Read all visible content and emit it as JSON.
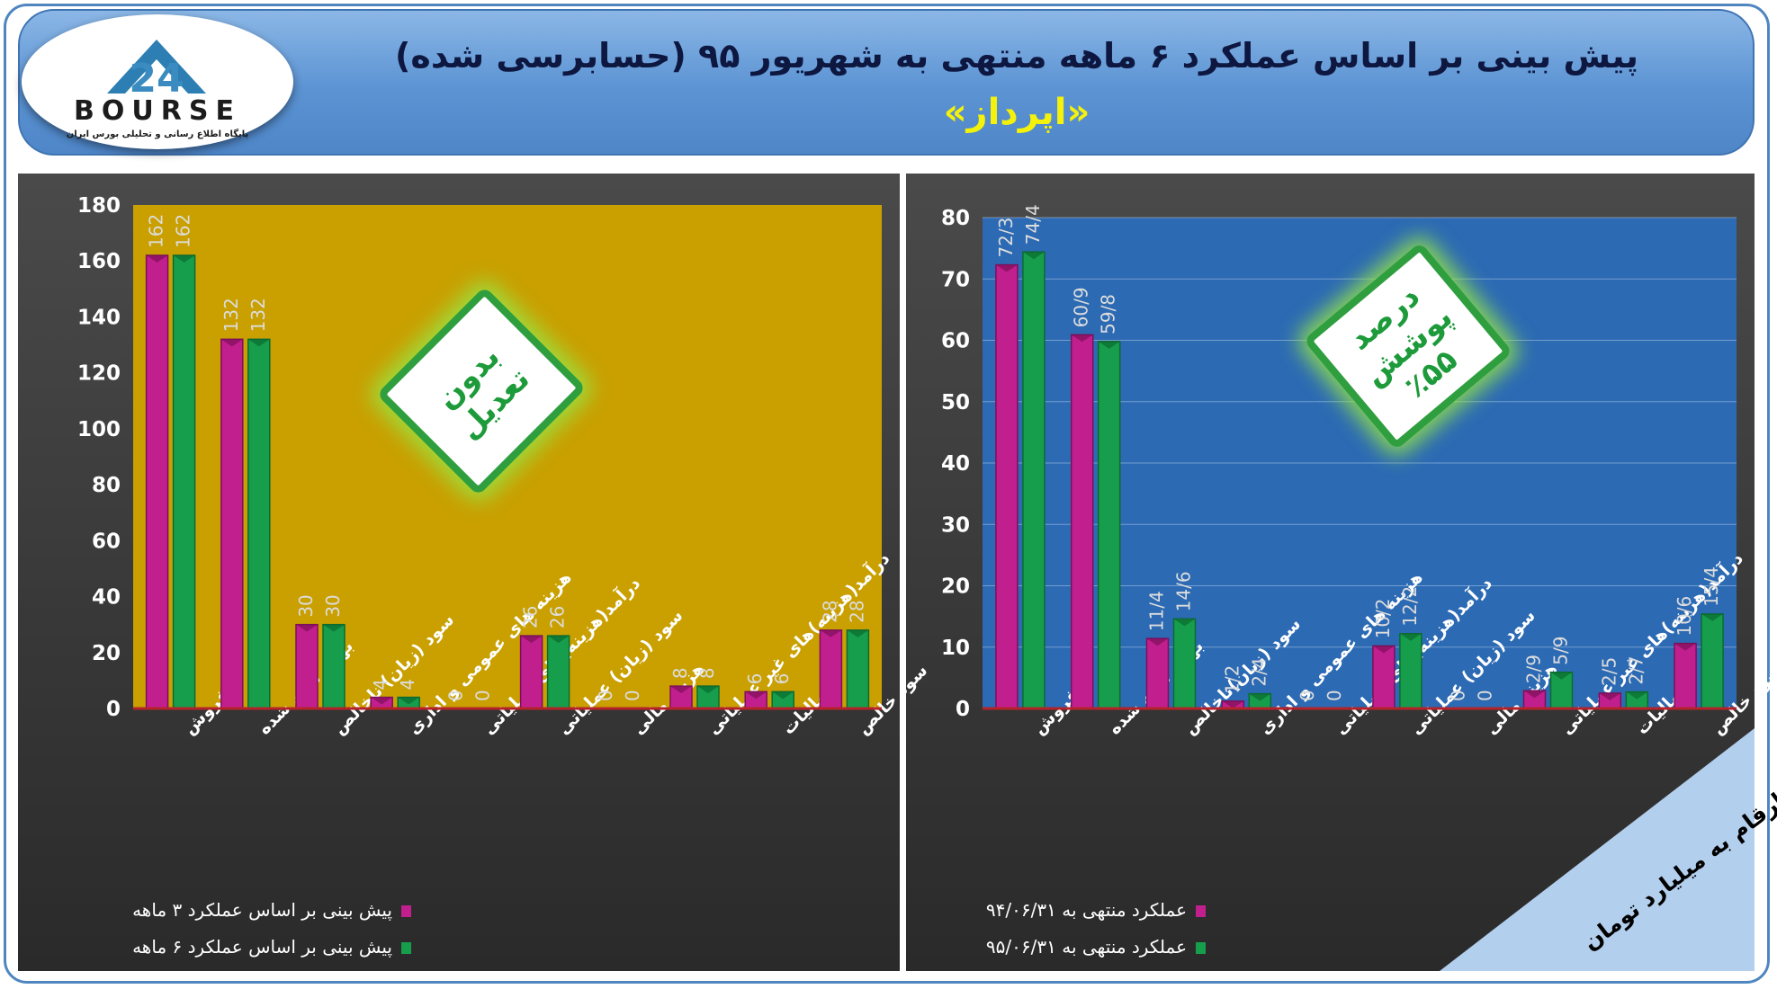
{
  "header": {
    "title": "پیش بینی بر اساس عملکرد ۶ ماهه منتهی به شهریور ۹۵ (حسابرسی شده)",
    "subtitle": "«اپرداز»"
  },
  "logo": {
    "text": "BOURSE",
    "number": "24",
    "tagline": "پایگاه اطلاع رسانی و تحلیلی بورس ایران"
  },
  "colors": {
    "magenta": "#c21f8e",
    "green": "#169e4c",
    "left_plot_bg": "#c9a000",
    "right_plot_bg": "#2c6ab4",
    "header_blue": "#5b93d3",
    "subtitle_yellow": "#f4f10a"
  },
  "badges": {
    "left": "بدون تعدیل",
    "right_line1": "درصد پوشش",
    "right_line2": "٪۵۵"
  },
  "corner_note": "ارقام به میلیارد تومان",
  "chart_data": [
    {
      "type": "bar",
      "categories": [
        "فروش",
        "بهای تمام شده",
        "سود (زیان) ناخالص",
        "هزینه های عمومی و اداری",
        "درآمد(هزینه)های عملیاتی",
        "سود (زیان) عملیاتی",
        "هزینه مالی",
        "درآمد(هزینه)های غیر عملیاتی",
        "مالیات",
        "سود خالص"
      ],
      "series": [
        {
          "name": "پیش بینی بر اساس عملکرد ۳ ماهه",
          "values": [
            162,
            132,
            30,
            4,
            0,
            26,
            0,
            8,
            6,
            28
          ],
          "labels": [
            "162",
            "132",
            "30",
            "4",
            "0",
            "26",
            "0",
            "8",
            "6",
            "28"
          ]
        },
        {
          "name": "پیش بینی بر اساس عملکرد ۶ ماهه",
          "values": [
            162,
            132,
            30,
            4,
            0,
            26,
            0,
            8,
            6,
            28
          ],
          "labels": [
            "162",
            "132",
            "30",
            "4",
            "0",
            "26",
            "0",
            "8",
            "6",
            "28"
          ]
        }
      ],
      "ylim": [
        0,
        180
      ],
      "yticks": [
        "0",
        "20",
        "40",
        "60",
        "80",
        "100",
        "120",
        "140",
        "160",
        "180"
      ],
      "grid": false,
      "legend": "bottom-left"
    },
    {
      "type": "bar",
      "categories": [
        "فروش",
        "بهای تمام شده",
        "سود (زیان)ناخالص",
        "هزینه های عمومی و اداری",
        "درآمد(هزینه)های عملیاتی",
        "سود (زیان) عملیاتی",
        "هزینه مالی",
        "درآمد(هزینه)های غیر عملیاتی",
        "مالیات",
        "سود خالص"
      ],
      "series": [
        {
          "name": "عملکرد منتهی به ۹۴/۰۶/۳۱",
          "values": [
            72.3,
            60.9,
            11.4,
            1.2,
            0,
            10.2,
            0,
            2.9,
            2.5,
            10.6
          ],
          "labels": [
            "72/3",
            "60/9",
            "11/4",
            "1/2",
            "0",
            "10/2",
            "0",
            "2/9",
            "2/5",
            "10/6"
          ]
        },
        {
          "name": "عملکرد منتهی به ۹۵/۰۶/۳۱",
          "values": [
            74.4,
            59.8,
            14.6,
            2.4,
            0,
            12.2,
            0,
            5.9,
            2.7,
            15.4
          ],
          "labels": [
            "74/4",
            "59/8",
            "14/6",
            "2/4",
            "0",
            "12/2",
            "0",
            "5/9",
            "2/7",
            "15/4"
          ]
        }
      ],
      "ylim": [
        0,
        80
      ],
      "yticks": [
        "0",
        "10",
        "20",
        "30",
        "40",
        "50",
        "60",
        "70",
        "80"
      ],
      "grid": true,
      "legend": "bottom-left"
    }
  ]
}
